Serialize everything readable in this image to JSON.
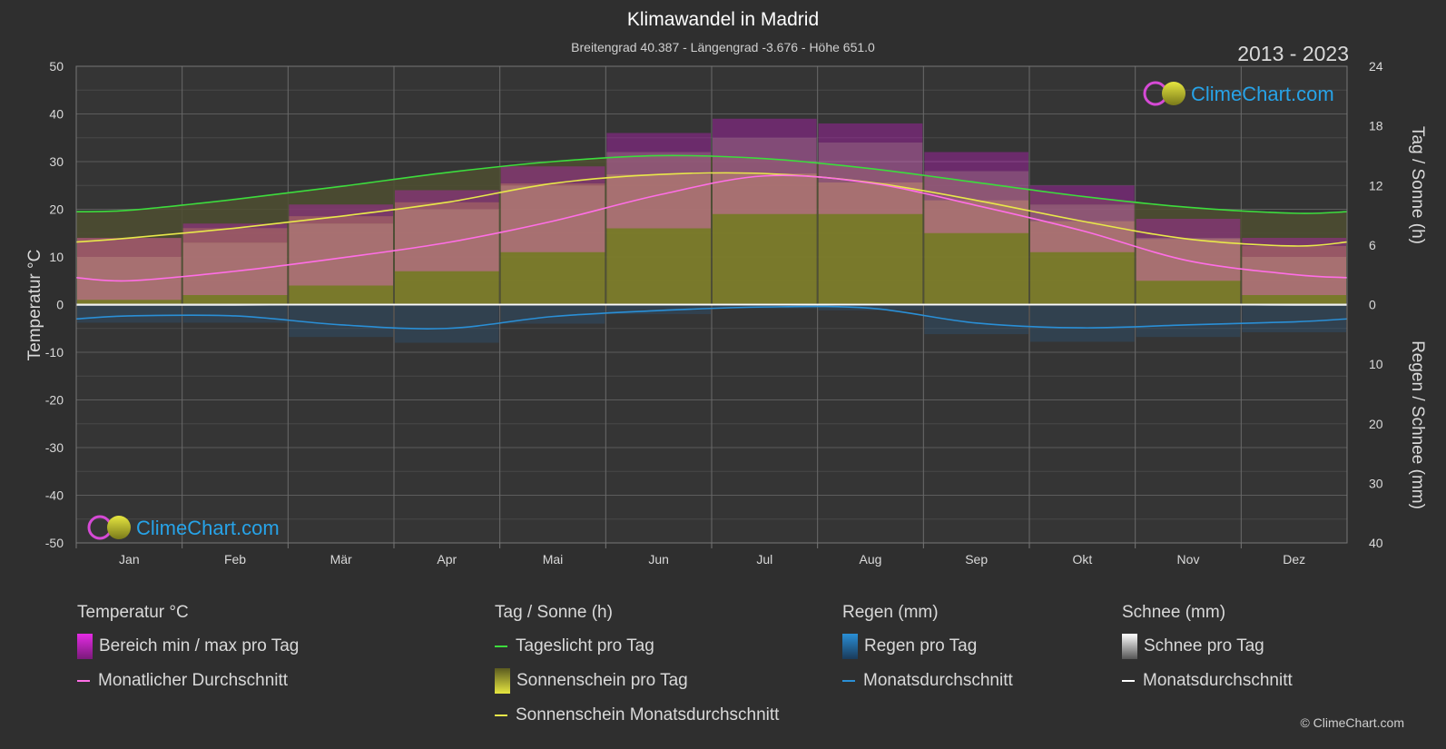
{
  "header": {
    "title": "Klimawandel in Madrid",
    "subtitle": "Breitengrad 40.387 - Längengrad -3.676 - Höhe 651.0",
    "year_range": "2013 - 2023"
  },
  "brand": {
    "logo_text": "ClimeChart.com",
    "copyright": "© ClimeChart.com"
  },
  "legend": {
    "temperature": {
      "heading": "Temperatur °C",
      "range_label": "Bereich min / max pro Tag",
      "avg_label": "Monatlicher Durchschnitt"
    },
    "sun": {
      "heading": "Tag / Sonne (h)",
      "daylight_label": "Tageslicht pro Tag",
      "sunshine_label": "Sonnenschein pro Tag",
      "sunshine_avg_label": "Sonnenschein Monatsdurchschnitt"
    },
    "rain": {
      "heading": "Regen (mm)",
      "rain_label": "Regen pro Tag",
      "avg_label": "Monatsdurchschnitt"
    },
    "snow": {
      "heading": "Schnee (mm)",
      "snow_label": "Schnee pro Tag",
      "avg_label": "Monatsdurchschnitt"
    }
  },
  "colors": {
    "background": "#2f2f2f",
    "daylight": "#3ddc3d",
    "sunshine_avg": "#e8e84a",
    "sunshine_fill": "#8a8a2a",
    "temp_avg": "#ff6ee6",
    "temp_range": "#d21bd2",
    "rain": "#2a8fd6",
    "snow": "#d8d8d8",
    "grid": "#5a5a5a",
    "logo": "#27a3e8"
  },
  "chart_data": {
    "type": "line",
    "categories": [
      "Jan",
      "Feb",
      "Mär",
      "Apr",
      "Mai",
      "Jun",
      "Jul",
      "Aug",
      "Sep",
      "Okt",
      "Nov",
      "Dez"
    ],
    "axes": {
      "left": {
        "label": "Temperatur °C",
        "min": -50,
        "max": 50,
        "ticks": [
          50,
          40,
          30,
          20,
          10,
          0,
          -10,
          -20,
          -30,
          -40,
          -50
        ]
      },
      "right_top": {
        "label": "Tag / Sonne (h)",
        "min": 0,
        "max": 24,
        "ticks": [
          24,
          18,
          12,
          6,
          0
        ]
      },
      "right_bottom": {
        "label": "Regen / Schnee (mm)",
        "min": 0,
        "max": 40,
        "ticks": [
          0,
          10,
          20,
          30,
          40
        ]
      }
    },
    "grid": true,
    "series": [
      {
        "name": "Tageslicht pro Tag",
        "axis": "hours",
        "values": [
          9.5,
          10.6,
          11.9,
          13.3,
          14.4,
          15.0,
          14.7,
          13.7,
          12.3,
          10.9,
          9.8,
          9.2
        ]
      },
      {
        "name": "Sonnenschein Monatsdurchschnitt",
        "axis": "hours",
        "values": [
          6.7,
          7.7,
          8.9,
          10.3,
          12.2,
          13.1,
          13.2,
          12.3,
          10.5,
          8.4,
          6.6,
          5.9
        ]
      },
      {
        "name": "Monatlicher Durchschnitt",
        "axis": "temp",
        "values": [
          5.0,
          7.0,
          9.8,
          13.0,
          17.5,
          23.0,
          27.0,
          25.5,
          20.8,
          15.5,
          9.2,
          6.3
        ]
      },
      {
        "name": "Regen Monatsdurchschnitt",
        "axis": "rain",
        "values": [
          1.9,
          1.9,
          3.4,
          4.0,
          2.0,
          1.0,
          0.4,
          0.6,
          3.1,
          3.9,
          3.4,
          2.9
        ]
      },
      {
        "name": "Schnee Monatsdurchschnitt",
        "axis": "rain",
        "values": [
          0.1,
          0.1,
          0.0,
          0.0,
          0.0,
          0.0,
          0.0,
          0.0,
          0.0,
          0.0,
          0.0,
          0.1
        ]
      }
    ],
    "temp_range_daily": {
      "min": [
        1,
        2,
        4,
        7,
        11,
        16,
        19,
        19,
        15,
        11,
        5,
        2
      ],
      "max": [
        10,
        13,
        17,
        20,
        25,
        32,
        35,
        34,
        28,
        21,
        14,
        10
      ]
    },
    "sunshine_daily": [
      6.7,
      7.7,
      8.9,
      10.3,
      12.2,
      13.1,
      13.2,
      12.3,
      10.5,
      8.4,
      6.6,
      5.9
    ]
  }
}
